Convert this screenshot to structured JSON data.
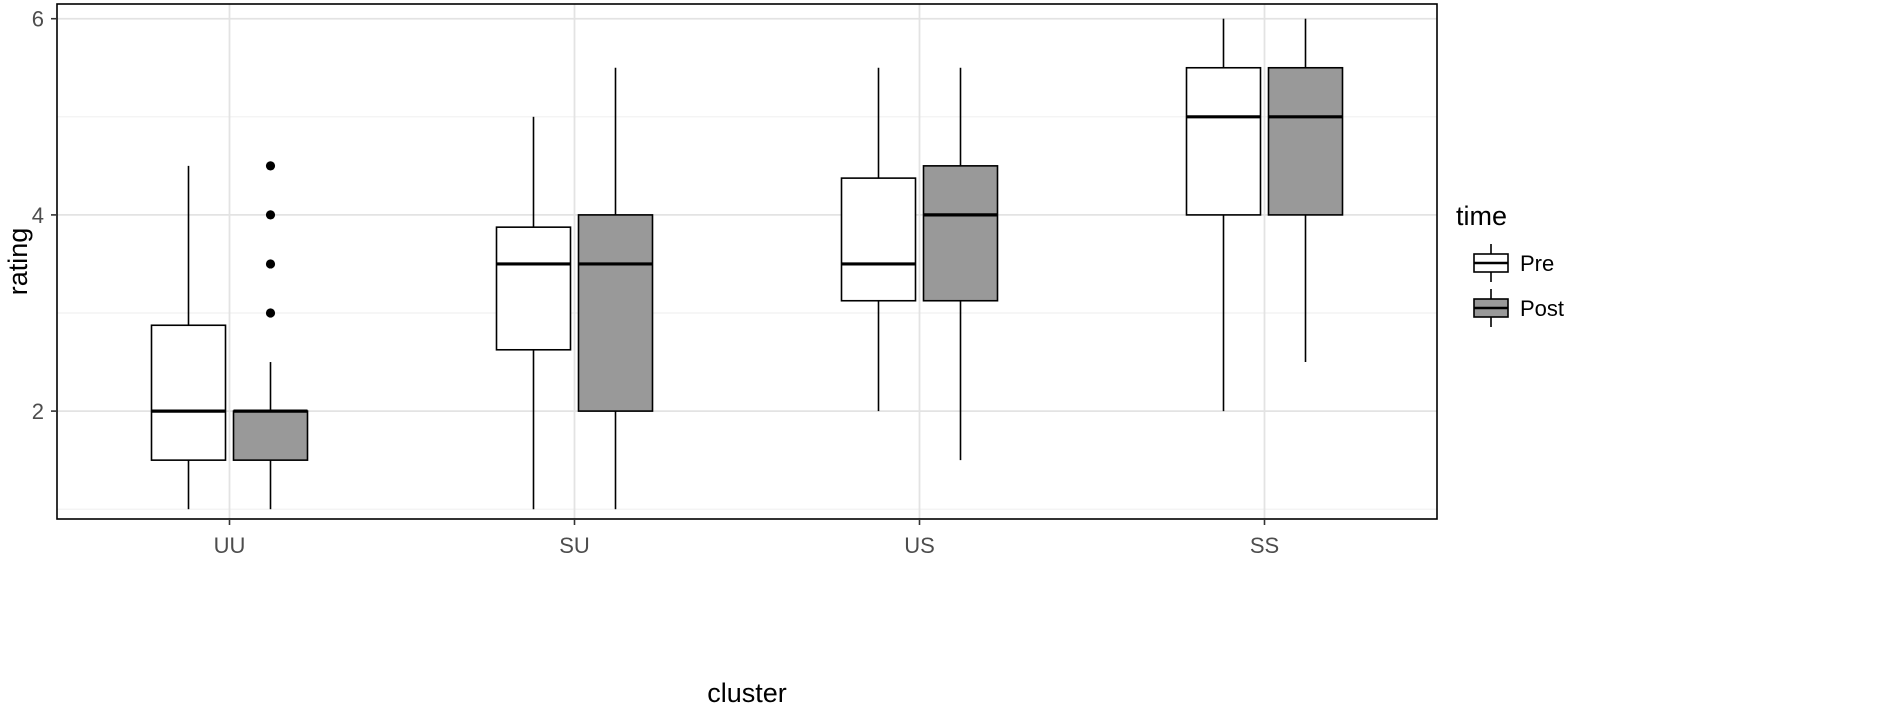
{
  "chart_data": {
    "type": "boxplot",
    "xlabel": "cluster",
    "ylabel": "rating",
    "categories": [
      "UU",
      "SU",
      "US",
      "SS"
    ],
    "ylim": [
      0.9,
      6.15
    ],
    "yticks": [
      2,
      4,
      6
    ],
    "grid": true,
    "legend": {
      "title": "time",
      "placement": "right",
      "entries": [
        "Pre",
        "Post"
      ]
    },
    "series": [
      {
        "name": "Pre",
        "fill": "#ffffff",
        "boxes": [
          {
            "category": "UU",
            "whisker_low": 1.0,
            "q1": 1.5,
            "median": 2.0,
            "q3": 2.875,
            "whisker_high": 4.5,
            "outliers": []
          },
          {
            "category": "SU",
            "whisker_low": 1.0,
            "q1": 2.625,
            "median": 3.5,
            "q3": 3.875,
            "whisker_high": 5.0,
            "outliers": []
          },
          {
            "category": "US",
            "whisker_low": 2.0,
            "q1": 3.125,
            "median": 3.5,
            "q3": 4.375,
            "whisker_high": 5.5,
            "outliers": []
          },
          {
            "category": "SS",
            "whisker_low": 2.0,
            "q1": 4.0,
            "median": 5.0,
            "q3": 5.5,
            "whisker_high": 6.0,
            "outliers": []
          }
        ]
      },
      {
        "name": "Post",
        "fill": "#999999",
        "boxes": [
          {
            "category": "UU",
            "whisker_low": 1.0,
            "q1": 1.5,
            "median": 2.0,
            "q3": 2.0,
            "whisker_high": 2.5,
            "outliers": [
              3.0,
              3.5,
              4.0,
              4.5
            ]
          },
          {
            "category": "SU",
            "whisker_low": 1.0,
            "q1": 2.0,
            "median": 3.5,
            "q3": 4.0,
            "whisker_high": 5.5,
            "outliers": []
          },
          {
            "category": "US",
            "whisker_low": 1.5,
            "q1": 3.125,
            "median": 4.0,
            "q3": 4.5,
            "whisker_high": 5.5,
            "outliers": []
          },
          {
            "category": "SS",
            "whisker_low": 2.5,
            "q1": 4.0,
            "median": 5.0,
            "q3": 5.5,
            "whisker_high": 6.0,
            "outliers": []
          }
        ]
      }
    ]
  }
}
